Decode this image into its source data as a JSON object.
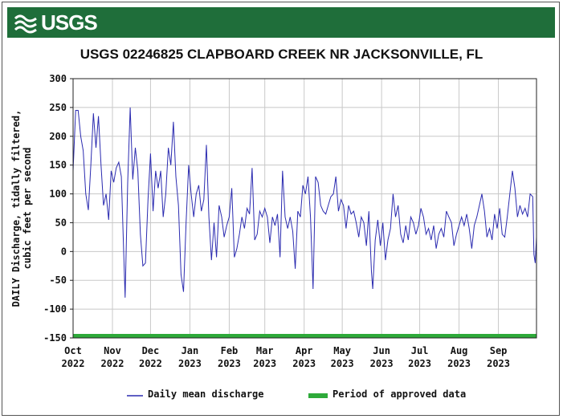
{
  "header": {
    "logo_text": "USGS",
    "banner_color": "#1f6e3a"
  },
  "chart_data": {
    "type": "line",
    "title": "USGS 02246825 CLAPBOARD CREEK NR JACKSONVILLE, FL",
    "ylabel_line1": "DAILY Discharge, tidally filtered,",
    "ylabel_line2": "cubic feet per second",
    "ylim": [
      -150,
      300
    ],
    "yticks": [
      300,
      250,
      200,
      150,
      100,
      50,
      0,
      -50,
      -100,
      -150
    ],
    "x_month_ticks": [
      {
        "month": "Oct",
        "year": "2022",
        "day": 0
      },
      {
        "month": "Nov",
        "year": "2022",
        "day": 31
      },
      {
        "month": "Dec",
        "year": "2022",
        "day": 61
      },
      {
        "month": "Jan",
        "year": "2023",
        "day": 92
      },
      {
        "month": "Feb",
        "year": "2023",
        "day": 123
      },
      {
        "month": "Mar",
        "year": "2023",
        "day": 151
      },
      {
        "month": "Apr",
        "year": "2023",
        "day": 182
      },
      {
        "month": "May",
        "year": "2023",
        "day": 212
      },
      {
        "month": "Jun",
        "year": "2023",
        "day": 243
      },
      {
        "month": "Jul",
        "year": "2023",
        "day": 273
      },
      {
        "month": "Aug",
        "year": "2023",
        "day": 304
      },
      {
        "month": "Sep",
        "year": "2023",
        "day": 335
      }
    ],
    "x_end_day": 365,
    "grid": true,
    "series": [
      {
        "name": "Daily mean discharge",
        "color": "#2b2bb0",
        "points": [
          [
            0,
            140
          ],
          [
            2,
            245
          ],
          [
            4,
            245
          ],
          [
            6,
            200
          ],
          [
            8,
            175
          ],
          [
            10,
            100
          ],
          [
            12,
            72
          ],
          [
            14,
            150
          ],
          [
            16,
            240
          ],
          [
            18,
            180
          ],
          [
            20,
            235
          ],
          [
            22,
            150
          ],
          [
            24,
            80
          ],
          [
            26,
            100
          ],
          [
            28,
            55
          ],
          [
            30,
            140
          ],
          [
            32,
            120
          ],
          [
            34,
            145
          ],
          [
            36,
            155
          ],
          [
            38,
            130
          ],
          [
            40,
            -10
          ],
          [
            41,
            -80
          ],
          [
            43,
            120
          ],
          [
            45,
            250
          ],
          [
            47,
            125
          ],
          [
            49,
            180
          ],
          [
            51,
            140
          ],
          [
            53,
            30
          ],
          [
            55,
            -25
          ],
          [
            57,
            -20
          ],
          [
            59,
            90
          ],
          [
            61,
            170
          ],
          [
            63,
            70
          ],
          [
            65,
            140
          ],
          [
            67,
            110
          ],
          [
            69,
            140
          ],
          [
            71,
            60
          ],
          [
            73,
            100
          ],
          [
            75,
            180
          ],
          [
            77,
            150
          ],
          [
            79,
            225
          ],
          [
            81,
            130
          ],
          [
            83,
            80
          ],
          [
            85,
            -40
          ],
          [
            87,
            -70
          ],
          [
            89,
            50
          ],
          [
            91,
            150
          ],
          [
            93,
            100
          ],
          [
            95,
            60
          ],
          [
            97,
            100
          ],
          [
            99,
            115
          ],
          [
            101,
            70
          ],
          [
            103,
            90
          ],
          [
            105,
            185
          ],
          [
            107,
            60
          ],
          [
            109,
            -15
          ],
          [
            111,
            50
          ],
          [
            113,
            -10
          ],
          [
            115,
            80
          ],
          [
            117,
            60
          ],
          [
            119,
            25
          ],
          [
            121,
            45
          ],
          [
            123,
            60
          ],
          [
            125,
            110
          ],
          [
            127,
            -10
          ],
          [
            129,
            5
          ],
          [
            131,
            30
          ],
          [
            133,
            60
          ],
          [
            135,
            40
          ],
          [
            137,
            75
          ],
          [
            139,
            65
          ],
          [
            141,
            145
          ],
          [
            143,
            20
          ],
          [
            145,
            30
          ],
          [
            147,
            70
          ],
          [
            149,
            60
          ],
          [
            151,
            75
          ],
          [
            153,
            60
          ],
          [
            155,
            15
          ],
          [
            157,
            60
          ],
          [
            159,
            45
          ],
          [
            161,
            65
          ],
          [
            163,
            -10
          ],
          [
            165,
            140
          ],
          [
            167,
            60
          ],
          [
            169,
            40
          ],
          [
            171,
            60
          ],
          [
            173,
            35
          ],
          [
            175,
            -30
          ],
          [
            177,
            70
          ],
          [
            179,
            60
          ],
          [
            181,
            115
          ],
          [
            183,
            100
          ],
          [
            185,
            130
          ],
          [
            187,
            60
          ],
          [
            189,
            -65
          ],
          [
            191,
            130
          ],
          [
            193,
            120
          ],
          [
            195,
            80
          ],
          [
            197,
            70
          ],
          [
            199,
            65
          ],
          [
            201,
            80
          ],
          [
            203,
            95
          ],
          [
            205,
            100
          ],
          [
            207,
            130
          ],
          [
            209,
            70
          ],
          [
            211,
            90
          ],
          [
            213,
            80
          ],
          [
            215,
            40
          ],
          [
            217,
            80
          ],
          [
            219,
            65
          ],
          [
            221,
            70
          ],
          [
            223,
            50
          ],
          [
            225,
            25
          ],
          [
            227,
            60
          ],
          [
            229,
            50
          ],
          [
            231,
            10
          ],
          [
            233,
            70
          ],
          [
            235,
            -35
          ],
          [
            236,
            -65
          ],
          [
            238,
            20
          ],
          [
            240,
            55
          ],
          [
            242,
            10
          ],
          [
            244,
            50
          ],
          [
            246,
            -15
          ],
          [
            248,
            20
          ],
          [
            250,
            40
          ],
          [
            252,
            100
          ],
          [
            254,
            60
          ],
          [
            256,
            80
          ],
          [
            258,
            30
          ],
          [
            260,
            15
          ],
          [
            262,
            45
          ],
          [
            264,
            20
          ],
          [
            266,
            60
          ],
          [
            268,
            50
          ],
          [
            270,
            30
          ],
          [
            272,
            45
          ],
          [
            274,
            75
          ],
          [
            276,
            60
          ],
          [
            278,
            30
          ],
          [
            280,
            40
          ],
          [
            282,
            20
          ],
          [
            284,
            45
          ],
          [
            286,
            5
          ],
          [
            288,
            30
          ],
          [
            290,
            40
          ],
          [
            292,
            25
          ],
          [
            294,
            70
          ],
          [
            296,
            60
          ],
          [
            298,
            50
          ],
          [
            300,
            10
          ],
          [
            302,
            30
          ],
          [
            304,
            45
          ],
          [
            306,
            60
          ],
          [
            308,
            45
          ],
          [
            310,
            65
          ],
          [
            312,
            40
          ],
          [
            314,
            5
          ],
          [
            316,
            45
          ],
          [
            318,
            60
          ],
          [
            320,
            80
          ],
          [
            322,
            100
          ],
          [
            324,
            70
          ],
          [
            326,
            25
          ],
          [
            328,
            40
          ],
          [
            330,
            20
          ],
          [
            332,
            65
          ],
          [
            334,
            40
          ],
          [
            336,
            75
          ],
          [
            338,
            30
          ],
          [
            340,
            25
          ],
          [
            342,
            60
          ],
          [
            344,
            100
          ],
          [
            346,
            140
          ],
          [
            348,
            110
          ],
          [
            350,
            60
          ],
          [
            352,
            80
          ],
          [
            354,
            65
          ],
          [
            356,
            75
          ],
          [
            358,
            60
          ],
          [
            360,
            100
          ],
          [
            362,
            95
          ],
          [
            363,
            -5
          ],
          [
            364,
            -20
          ],
          [
            365,
            25
          ]
        ]
      }
    ],
    "legend": [
      {
        "label": "Daily mean discharge",
        "color": "#2b2bb0",
        "kind": "line"
      },
      {
        "label": "Period of approved data",
        "color": "#2eaa3a",
        "kind": "bar"
      }
    ],
    "approved_period": {
      "start_day": 0,
      "end_day": 365,
      "y": -150,
      "color": "#2eaa3a"
    }
  }
}
